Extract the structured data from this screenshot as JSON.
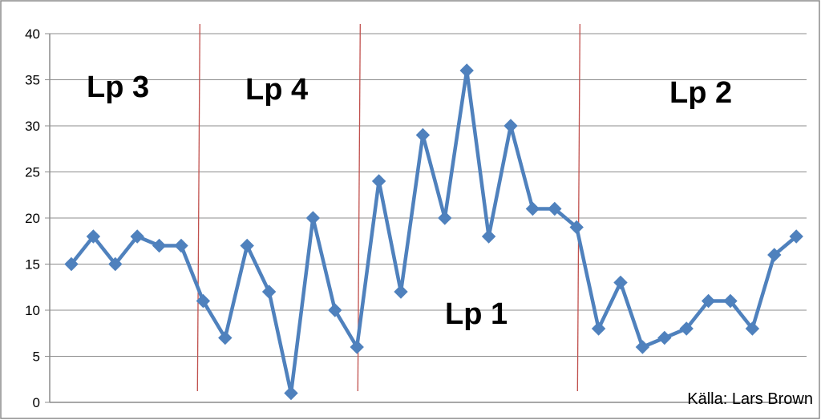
{
  "chart_data": {
    "type": "line",
    "title": "",
    "xlabel": "",
    "ylabel": "",
    "ylim": [
      0,
      40
    ],
    "yticks": [
      0,
      5,
      10,
      15,
      20,
      25,
      30,
      35,
      40
    ],
    "grid": "horizontal",
    "legend": "none",
    "series": [
      {
        "color": "#4f81bd",
        "marker": "diamond",
        "values": [
          15,
          18,
          15,
          18,
          17,
          17,
          11,
          7,
          17,
          12,
          1,
          20,
          10,
          6,
          24,
          12,
          29,
          20,
          36,
          18,
          30,
          21,
          21,
          19,
          8,
          13,
          6,
          7,
          8,
          11,
          11,
          8,
          16,
          18
        ]
      }
    ],
    "period_dividers": {
      "color": "#c0504d",
      "after_points": [
        5.85,
        13.15,
        23.15
      ]
    },
    "period_labels": [
      {
        "text": "Lp 3"
      },
      {
        "text": "Lp 4"
      },
      {
        "text": "Lp 1"
      },
      {
        "text": "Lp 2"
      }
    ],
    "annotations": [
      {
        "text": "Källa: Lars Brown"
      }
    ]
  }
}
